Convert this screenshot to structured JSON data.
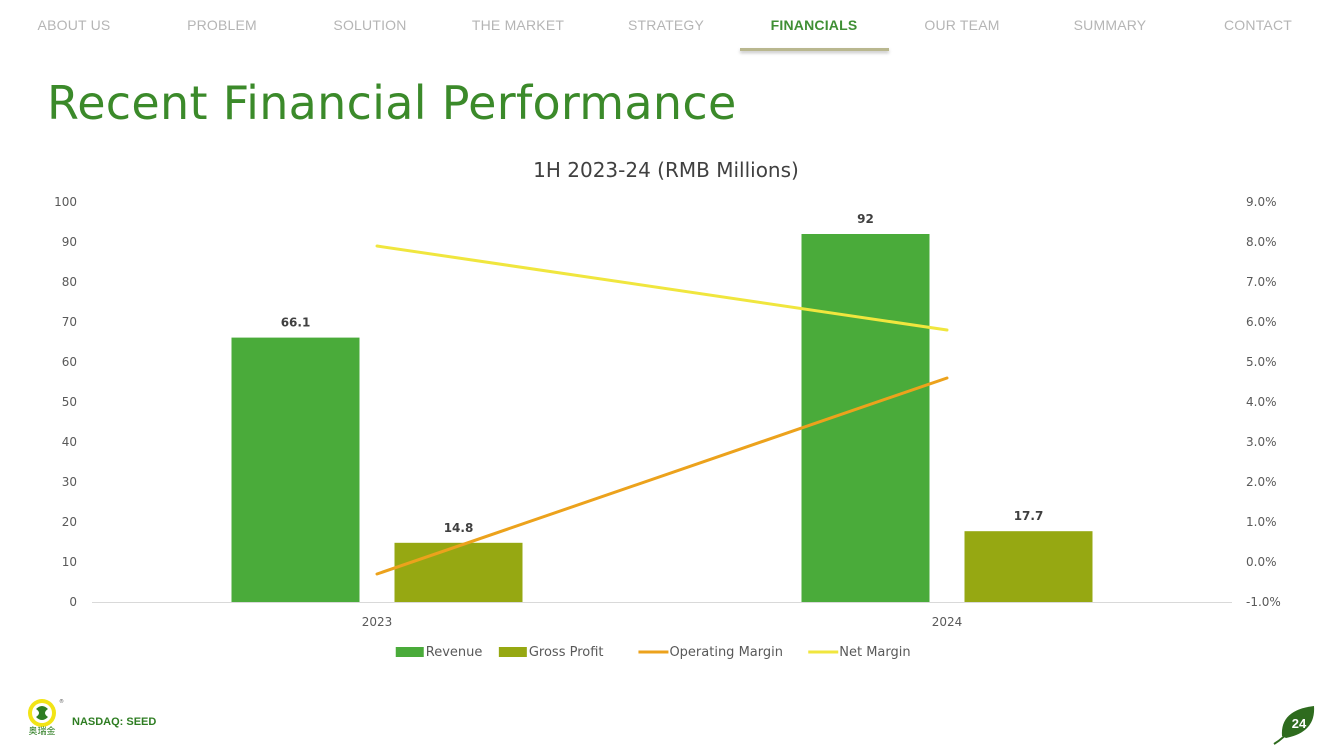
{
  "nav": {
    "items": [
      {
        "label": "ABOUT US",
        "active": false
      },
      {
        "label": "PROBLEM",
        "active": false
      },
      {
        "label": "SOLUTION",
        "active": false
      },
      {
        "label": "THE MARKET",
        "active": false
      },
      {
        "label": "STRATEGY",
        "active": false
      },
      {
        "label": "FINANCIALS",
        "active": true
      },
      {
        "label": "OUR TEAM",
        "active": false
      },
      {
        "label": "SUMMARY",
        "active": false
      },
      {
        "label": "CONTACT",
        "active": false
      }
    ]
  },
  "page": {
    "title": "Recent Financial Performance",
    "number": "24"
  },
  "footer": {
    "ticker": "NASDAQ: SEED",
    "logo_text": "奥瑞金"
  },
  "colors": {
    "accent": "#3b8a2a",
    "revenue": "#4aab3a",
    "gross_profit": "#96a812",
    "operating_margin": "#eca21c",
    "net_margin": "#f0e63e",
    "page_badge": "#2e6b1e"
  },
  "chart_data": {
    "type": "bar",
    "title": "1H 2023-24 (RMB Millions)",
    "categories": [
      "2023",
      "2024"
    ],
    "series": [
      {
        "name": "Revenue",
        "kind": "bar",
        "axis": "left",
        "values": [
          66.1,
          92
        ],
        "labels": [
          "66.1",
          "92"
        ],
        "color": "#4aab3a"
      },
      {
        "name": "Gross Profit",
        "kind": "bar",
        "axis": "left",
        "values": [
          14.8,
          17.7
        ],
        "labels": [
          "14.8",
          "17.7"
        ],
        "color": "#96a812"
      },
      {
        "name": "Operating Margin",
        "kind": "line",
        "axis": "right",
        "values": [
          -0.3,
          4.6
        ],
        "color": "#eca21c"
      },
      {
        "name": "Net Margin",
        "kind": "line",
        "axis": "right",
        "values": [
          7.9,
          5.8
        ],
        "color": "#f0e63e"
      }
    ],
    "y_left": {
      "ylim": [
        0,
        100
      ],
      "ticks": [
        "0",
        "10",
        "20",
        "30",
        "40",
        "50",
        "60",
        "70",
        "80",
        "90",
        "100"
      ]
    },
    "y_right": {
      "ylim": [
        -1.0,
        9.0
      ],
      "ticks": [
        "-1.0%",
        "0.0%",
        "1.0%",
        "2.0%",
        "3.0%",
        "4.0%",
        "5.0%",
        "6.0%",
        "7.0%",
        "8.0%",
        "9.0%"
      ]
    },
    "legend": "bottom",
    "grid": false
  }
}
